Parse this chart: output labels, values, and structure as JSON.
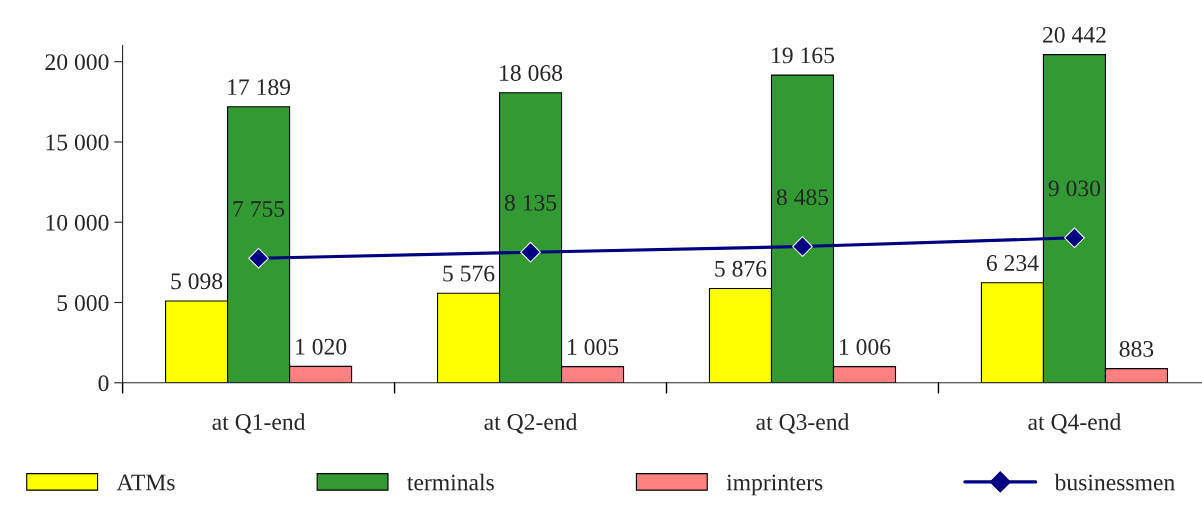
{
  "chart_data": {
    "type": "bar",
    "categories": [
      "at Q1-end",
      "at Q2-end",
      "at Q3-end",
      "at Q4-end"
    ],
    "series": [
      {
        "name": "ATMs",
        "color": "#ffff00",
        "values": [
          5098,
          5576,
          5876,
          6234
        ]
      },
      {
        "name": "terminals",
        "color": "#339933",
        "values": [
          17189,
          18068,
          19165,
          20442
        ]
      },
      {
        "name": "imprinters",
        "color": "#ff8080",
        "values": [
          1020,
          1005,
          1006,
          883
        ]
      },
      {
        "name": "businessmen",
        "type": "line",
        "color": "#000080",
        "marker": "diamond",
        "values": [
          7755,
          8135,
          8485,
          9030
        ]
      }
    ],
    "ylim": [
      0,
      21000
    ],
    "yticks": [
      {
        "value": 0,
        "label": "0"
      },
      {
        "value": 5000,
        "label": "5 000"
      },
      {
        "value": 10000,
        "label": "10 000"
      },
      {
        "value": 15000,
        "label": "15 000"
      },
      {
        "value": 20000,
        "label": "20 000"
      }
    ],
    "data_labels": true,
    "grid": false,
    "legend": "bottom"
  }
}
